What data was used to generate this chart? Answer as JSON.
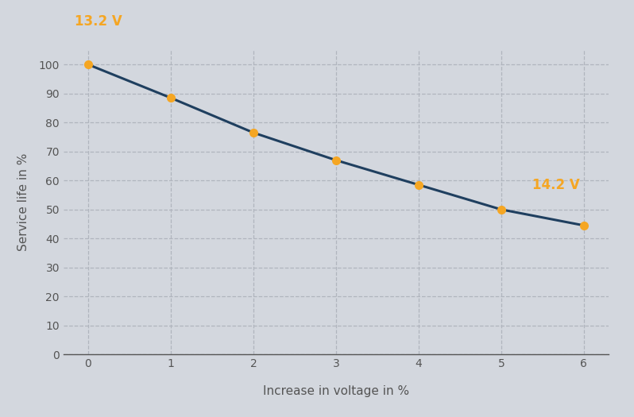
{
  "x": [
    0,
    1,
    2,
    3,
    4,
    5,
    6
  ],
  "y": [
    100,
    88.5,
    76.5,
    67.0,
    58.5,
    50.0,
    44.5
  ],
  "line_color": "#1f3f5f",
  "marker_color": "#f5a623",
  "marker_size": 8,
  "line_width": 2.2,
  "xlabel": "Increase in voltage in %",
  "ylabel": "Service life in %",
  "xlim": [
    -0.3,
    6.3
  ],
  "ylim": [
    0,
    105
  ],
  "xticks": [
    0,
    1,
    2,
    3,
    4,
    5,
    6
  ],
  "yticks": [
    0,
    10,
    20,
    30,
    40,
    50,
    60,
    70,
    80,
    90,
    100
  ],
  "background_color": "#d3d7de",
  "plot_bg_color": "#d3d7de",
  "grid_color": "#b0b5be",
  "label_13v": "13.2 V",
  "label_14v": "14.2 V",
  "label_color": "#f5a623",
  "tick_color": "#555555",
  "xlabel_fontsize": 11,
  "ylabel_fontsize": 11,
  "annotation_fontsize": 12,
  "tick_fontsize": 10
}
